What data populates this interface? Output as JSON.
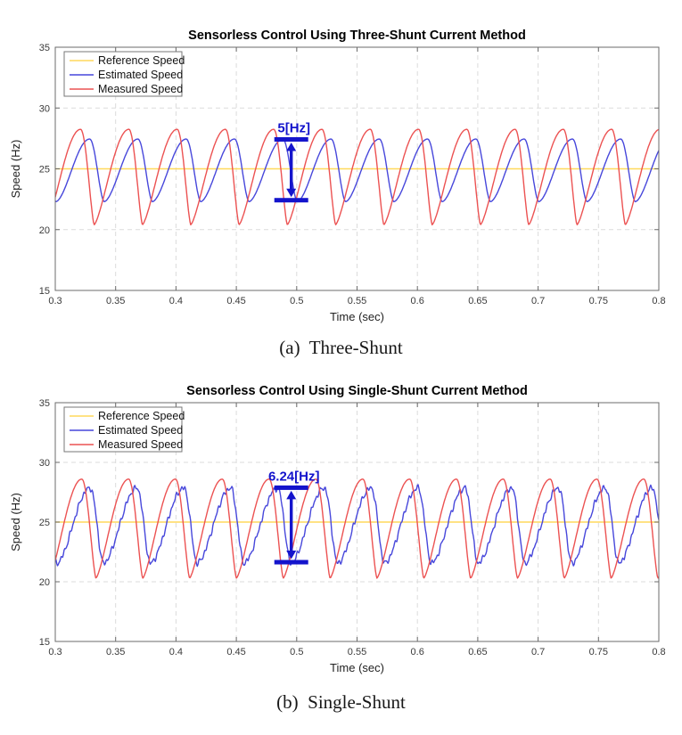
{
  "style": {
    "grid_color": "#DBDBDB",
    "axis_color": "#6b6b6b",
    "tick_label_color": "#3a3a3a",
    "title_color": "#000000",
    "reference_color": "#FFD95C",
    "estimated_color": "#4747DB",
    "measured_color": "#EC5252",
    "annotation_color": "#1414CC"
  },
  "captions": [
    {
      "label": "(a)  Three-Shunt"
    },
    {
      "label": "(b)  Single-Shunt"
    }
  ],
  "chart_data": [
    {
      "type": "line",
      "title": "Sensorless Control Using Three-Shunt Current Method",
      "xlabel": "Time (sec)",
      "ylabel": "Speed (Hz)",
      "xlim": [
        0.3,
        0.8
      ],
      "ylim": [
        15,
        35
      ],
      "xticks": [
        0.3,
        0.35,
        0.4,
        0.45,
        0.5,
        0.55,
        0.6,
        0.65,
        0.7,
        0.75,
        0.8
      ],
      "xtick_labels": [
        "0.3",
        "0.35",
        "0.4",
        "0.45",
        "0.5",
        "0.55",
        "0.6",
        "0.65",
        "0.7",
        "0.75",
        "0.8"
      ],
      "yticks": [
        15,
        20,
        25,
        30,
        35
      ],
      "ytick_labels": [
        "15",
        "20",
        "25",
        "30",
        "35"
      ],
      "grid": "dashed",
      "legend": {
        "position": "top-left",
        "entries": [
          "Reference Speed",
          "Estimated Speed",
          "Measured Speed"
        ]
      },
      "series": [
        {
          "name": "Reference Speed",
          "color": "#FFD95C",
          "type": "constant",
          "value": 25
        },
        {
          "name": "Estimated Speed",
          "color": "#4747DB",
          "type": "periodic",
          "min": 22.3,
          "max": 27.45,
          "period": 0.04,
          "peak_time": 0.3285,
          "fall_fraction": 0.3,
          "trough_sharpness": 0.85,
          "noise_amplitude": 0
        },
        {
          "name": "Measured Speed",
          "color": "#EC5252",
          "type": "periodic",
          "min": 20.4,
          "max": 28.25,
          "period": 0.04,
          "peak_time": 0.321,
          "fall_fraction": 0.28,
          "trough_sharpness": 0.7,
          "noise_amplitude": 0
        }
      ],
      "annotation": {
        "text": "5[Hz]",
        "x": 0.4955,
        "y_top": 27.42,
        "y_bottom": 22.42,
        "color": "#1414CC"
      }
    },
    {
      "type": "line",
      "title": "Sensorless Control Using Single-Shunt Current Method",
      "xlabel": "Time (sec)",
      "ylabel": "Speed (Hz)",
      "xlim": [
        0.3,
        0.8
      ],
      "ylim": [
        15,
        35
      ],
      "xticks": [
        0.3,
        0.35,
        0.4,
        0.45,
        0.5,
        0.55,
        0.6,
        0.65,
        0.7,
        0.75,
        0.8
      ],
      "xtick_labels": [
        "0.3",
        "0.35",
        "0.4",
        "0.45",
        "0.5",
        "0.55",
        "0.6",
        "0.65",
        "0.7",
        "0.75",
        "0.8"
      ],
      "yticks": [
        15,
        20,
        25,
        30,
        35
      ],
      "ytick_labels": [
        "15",
        "20",
        "25",
        "30",
        "35"
      ],
      "grid": "dashed",
      "legend": {
        "position": "top-left",
        "entries": [
          "Reference Speed",
          "Estimated Speed",
          "Measured Speed"
        ]
      },
      "series": [
        {
          "name": "Reference Speed",
          "color": "#FFD95C",
          "type": "constant",
          "value": 25
        },
        {
          "name": "Estimated Speed",
          "color": "#4747DB",
          "type": "periodic",
          "min": 21.55,
          "max": 27.85,
          "period": 0.0388,
          "peak_time": 0.329,
          "fall_fraction": 0.28,
          "trough_sharpness": 0.9,
          "noise_amplitude": 0.27
        },
        {
          "name": "Measured Speed",
          "color": "#EC5252",
          "type": "periodic",
          "min": 20.3,
          "max": 28.6,
          "period": 0.0388,
          "peak_time": 0.322,
          "fall_fraction": 0.3,
          "trough_sharpness": 0.7,
          "noise_amplitude": 0
        }
      ],
      "annotation": {
        "text": "6.24[Hz]",
        "x": 0.4955,
        "y_top": 27.88,
        "y_bottom": 21.64,
        "color": "#1414CC"
      }
    }
  ]
}
